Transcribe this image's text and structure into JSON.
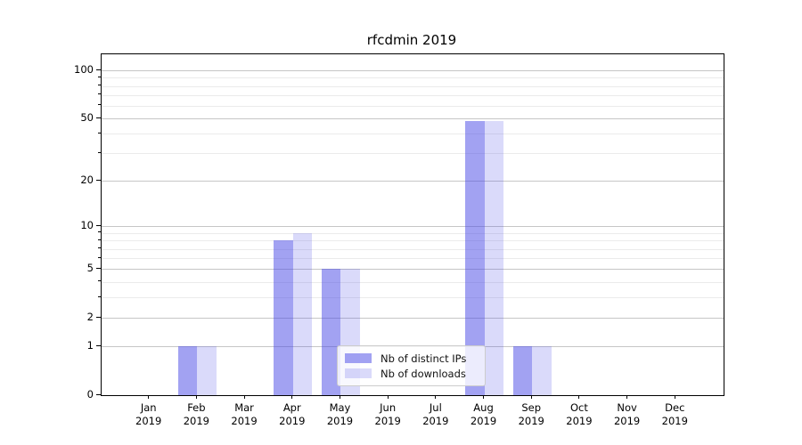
{
  "title": "rfcdmin 2019",
  "chart_data": {
    "type": "bar",
    "title": "rfcdmin 2019",
    "months": [
      "Jan",
      "Feb",
      "Mar",
      "Apr",
      "May",
      "Jun",
      "Jul",
      "Aug",
      "Sep",
      "Oct",
      "Nov",
      "Dec"
    ],
    "year": "2019",
    "series": [
      {
        "name": "Nb of distinct IPs",
        "color": "rgba(70,70,230,0.50)",
        "values": [
          0,
          1,
          0,
          8,
          5,
          0,
          0,
          48,
          1,
          0,
          0,
          0
        ]
      },
      {
        "name": "Nb of downloads",
        "color": "rgba(70,70,230,0.20)",
        "values": [
          0,
          1,
          0,
          9,
          5,
          0,
          0,
          48,
          1,
          0,
          0,
          0
        ]
      }
    ],
    "yscale": "log1p",
    "ylim": [
      0,
      126
    ],
    "yticks": [
      0,
      1,
      2,
      5,
      10,
      20,
      50,
      100
    ],
    "yticks_minor": [
      3,
      4,
      6,
      7,
      8,
      9,
      30,
      40,
      60,
      70,
      80,
      90
    ],
    "grid": true,
    "legend_position": "lower center"
  },
  "colors": {
    "grid_major": "#c6c6c6",
    "grid_minor": "#ebebeb",
    "axis": "#000000",
    "legend_border": "#cccccc"
  }
}
